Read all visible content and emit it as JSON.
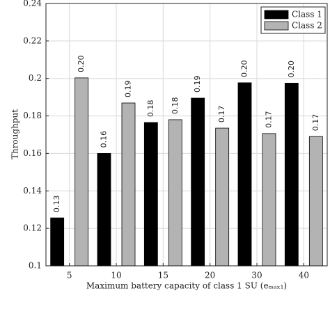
{
  "chart_data": {
    "type": "bar",
    "x_label": "Maximum battery capacity of class 1 SU (eₘₐₓ₁)",
    "y_label": "Throughput",
    "categories": [
      "5",
      "10",
      "15",
      "20",
      "30",
      "40"
    ],
    "series": [
      {
        "name": "Class 1",
        "color": "#000000",
        "values": [
          0.1256,
          0.16,
          0.1765,
          0.1895,
          0.1977,
          0.1975
        ],
        "value_labels": [
          "0.13",
          "0.16",
          "0.18",
          "0.19",
          "0.20",
          "0.20"
        ]
      },
      {
        "name": "Class 2",
        "color": "#b3b3b3",
        "values": [
          0.2003,
          0.1869,
          0.178,
          0.1735,
          0.1706,
          0.169
        ],
        "value_labels": [
          "0.20",
          "0.19",
          "0.18",
          "0.17",
          "0.17",
          "0.17"
        ]
      }
    ],
    "ylim": [
      0.1,
      0.24
    ],
    "yticks": [
      0.1,
      0.12,
      0.14,
      0.16,
      0.18,
      0.2,
      0.22,
      0.24
    ],
    "grid": true,
    "legend": "top-right"
  }
}
